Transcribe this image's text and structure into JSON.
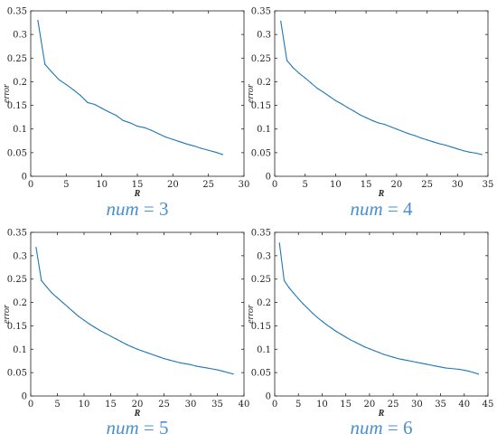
{
  "chart_data": [
    {
      "type": "line",
      "caption": {
        "var": "num",
        "eq": " = ",
        "val": "3"
      },
      "xlabel": "R",
      "ylabel": "error",
      "xlim": [
        0,
        30
      ],
      "ylim": [
        0,
        0.35
      ],
      "xticks": [
        "0",
        "5",
        "10",
        "15",
        "20",
        "25",
        "30"
      ],
      "yticks": [
        "0",
        "0.05",
        "0.1",
        "0.15",
        "0.2",
        "0.25",
        "0.3",
        "0.35"
      ],
      "color": "#1f77b4",
      "x": [
        1,
        2,
        3,
        4,
        5,
        6,
        7,
        8,
        9,
        10,
        11,
        12,
        13,
        14,
        15,
        16,
        17,
        18,
        19,
        20,
        21,
        22,
        23,
        24,
        25,
        26,
        27
      ],
      "y": [
        0.33,
        0.237,
        0.22,
        0.204,
        0.194,
        0.183,
        0.171,
        0.156,
        0.152,
        0.144,
        0.136,
        0.129,
        0.118,
        0.113,
        0.106,
        0.103,
        0.097,
        0.09,
        0.083,
        0.078,
        0.073,
        0.068,
        0.064,
        0.059,
        0.055,
        0.051,
        0.046
      ]
    },
    {
      "type": "line",
      "caption": {
        "var": "num",
        "eq": " = ",
        "val": "4"
      },
      "xlabel": "R",
      "ylabel": "error",
      "xlim": [
        0,
        35
      ],
      "ylim": [
        0,
        0.35
      ],
      "xticks": [
        "0",
        "5",
        "10",
        "15",
        "20",
        "25",
        "30",
        "35"
      ],
      "yticks": [
        "0",
        "0.05",
        "0.1",
        "0.15",
        "0.2",
        "0.25",
        "0.3",
        "0.35"
      ],
      "color": "#1f77b4",
      "x": [
        1,
        2,
        3,
        4,
        5,
        6,
        7,
        8,
        9,
        10,
        11,
        12,
        13,
        14,
        15,
        16,
        17,
        18,
        19,
        20,
        21,
        22,
        23,
        24,
        25,
        26,
        27,
        28,
        29,
        30,
        31,
        32,
        33,
        34
      ],
      "y": [
        0.328,
        0.245,
        0.23,
        0.218,
        0.208,
        0.197,
        0.186,
        0.178,
        0.169,
        0.16,
        0.153,
        0.145,
        0.138,
        0.13,
        0.124,
        0.118,
        0.113,
        0.11,
        0.105,
        0.1,
        0.095,
        0.09,
        0.086,
        0.081,
        0.077,
        0.073,
        0.069,
        0.066,
        0.062,
        0.058,
        0.054,
        0.051,
        0.049,
        0.046
      ]
    },
    {
      "type": "line",
      "caption": {
        "var": "num",
        "eq": " = ",
        "val": "5"
      },
      "xlabel": "R",
      "ylabel": "error",
      "xlim": [
        0,
        40
      ],
      "ylim": [
        0,
        0.35
      ],
      "xticks": [
        "0",
        "5",
        "10",
        "15",
        "20",
        "25",
        "30",
        "35",
        "40"
      ],
      "yticks": [
        "0",
        "0.05",
        "0.1",
        "0.15",
        "0.2",
        "0.25",
        "0.3",
        "0.35"
      ],
      "color": "#1f77b4",
      "x": [
        1,
        2,
        3,
        4,
        5,
        6,
        7,
        8,
        9,
        10,
        11,
        12,
        13,
        14,
        15,
        16,
        17,
        18,
        19,
        20,
        21,
        22,
        23,
        24,
        25,
        26,
        27,
        28,
        29,
        30,
        31,
        32,
        33,
        34,
        35,
        36,
        37,
        38
      ],
      "y": [
        0.318,
        0.247,
        0.233,
        0.22,
        0.21,
        0.2,
        0.19,
        0.18,
        0.17,
        0.162,
        0.154,
        0.147,
        0.14,
        0.134,
        0.128,
        0.122,
        0.116,
        0.11,
        0.105,
        0.1,
        0.096,
        0.092,
        0.088,
        0.084,
        0.08,
        0.077,
        0.074,
        0.071,
        0.069,
        0.067,
        0.064,
        0.062,
        0.06,
        0.058,
        0.056,
        0.053,
        0.05,
        0.047
      ]
    },
    {
      "type": "line",
      "caption": {
        "var": "num",
        "eq": " = ",
        "val": "6"
      },
      "xlabel": "R",
      "ylabel": "error",
      "xlim": [
        0,
        45
      ],
      "ylim": [
        0,
        0.35
      ],
      "xticks": [
        "0",
        "5",
        "10",
        "15",
        "20",
        "25",
        "30",
        "35",
        "40",
        "45"
      ],
      "yticks": [
        "0",
        "0.05",
        "0.1",
        "0.15",
        "0.2",
        "0.25",
        "0.3",
        "0.35"
      ],
      "color": "#1f77b4",
      "x": [
        1,
        2,
        3,
        4,
        5,
        6,
        7,
        8,
        9,
        10,
        11,
        12,
        13,
        14,
        15,
        16,
        17,
        18,
        19,
        20,
        21,
        22,
        23,
        24,
        25,
        26,
        27,
        28,
        29,
        30,
        31,
        32,
        33,
        34,
        35,
        36,
        37,
        38,
        39,
        40,
        41,
        42,
        43
      ],
      "y": [
        0.327,
        0.247,
        0.232,
        0.22,
        0.208,
        0.197,
        0.187,
        0.177,
        0.168,
        0.16,
        0.152,
        0.145,
        0.138,
        0.132,
        0.126,
        0.12,
        0.115,
        0.11,
        0.105,
        0.101,
        0.097,
        0.093,
        0.089,
        0.086,
        0.083,
        0.08,
        0.078,
        0.076,
        0.074,
        0.072,
        0.07,
        0.068,
        0.066,
        0.064,
        0.062,
        0.06,
        0.059,
        0.058,
        0.057,
        0.055,
        0.053,
        0.05,
        0.047
      ]
    }
  ]
}
